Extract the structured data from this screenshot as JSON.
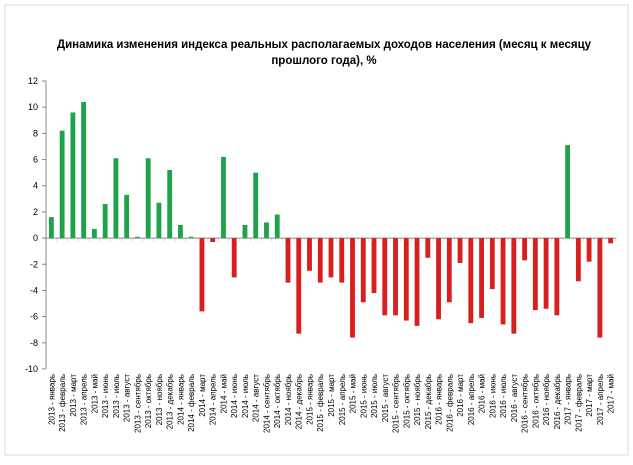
{
  "chart_data": {
    "type": "bar",
    "title_line1": "Динамика изменения индекса реальных располагаемых доходов населения (месяц к месяцу",
    "title_line2": "прошлого года), %",
    "ylim": [
      -10,
      12
    ],
    "yticks": [
      -10,
      -8,
      -6,
      -4,
      -2,
      0,
      2,
      4,
      6,
      8,
      10,
      12
    ],
    "grid": false,
    "legend": "none",
    "colors": {
      "positive": "#1fa34a",
      "negative": "#d91e1e"
    },
    "categories": [
      "2013 - январь",
      "2013 - февраль",
      "2013 - март",
      "2013 - апрель",
      "2013 - май",
      "2013 - июнь",
      "2013 - июль",
      "2013 - август",
      "2013 - сентябрь",
      "2013 - октябрь",
      "2013 - ноябрь",
      "2013 - декабрь",
      "2014 - январь",
      "2014 - февраль",
      "2014 - март",
      "2014 - апрель",
      "2014 - май",
      "2014 - июнь",
      "2014 - июль",
      "2014 - август",
      "2014 - сентябрь",
      "2014 - октябрь",
      "2014 - ноябрь",
      "2014 - декабрь",
      "2015 - январь",
      "2015 - февраль",
      "2015 - март",
      "2015 - апрель",
      "2015 - май",
      "2015 - июнь",
      "2015 - июль",
      "2015 - август",
      "2015 - сентябрь",
      "2015 - октябрь",
      "2015 - ноябрь",
      "2015 - декабрь",
      "2016 - январь",
      "2016 - февраль",
      "2016 - март",
      "2016 - апрель",
      "2016 - май",
      "2016 - июнь",
      "2016 - июль",
      "2016 - август",
      "2016 - сентябрь",
      "2016 - октябрь",
      "2016 - ноябрь",
      "2016 - декабрь",
      "2017 - январь",
      "2017 - февраль",
      "2017 - март",
      "2017 - апрель",
      "2017 - май"
    ],
    "values": [
      1.6,
      8.2,
      9.6,
      10.4,
      0.7,
      2.6,
      6.1,
      3.3,
      0.1,
      6.1,
      2.7,
      5.2,
      1.0,
      0.1,
      -5.6,
      -0.3,
      6.2,
      -3.0,
      1.0,
      5.0,
      1.2,
      1.8,
      -3.4,
      -7.3,
      -2.5,
      -3.4,
      -3.0,
      -3.4,
      -7.6,
      -4.9,
      -4.2,
      -5.9,
      -5.9,
      -6.3,
      -6.7,
      -1.5,
      -6.2,
      -4.9,
      -1.9,
      -6.5,
      -6.1,
      -3.9,
      -6.6,
      -7.3,
      -1.7,
      -5.5,
      -5.4,
      -5.9,
      7.1,
      -3.3,
      -1.8,
      -7.6,
      -0.4
    ]
  }
}
